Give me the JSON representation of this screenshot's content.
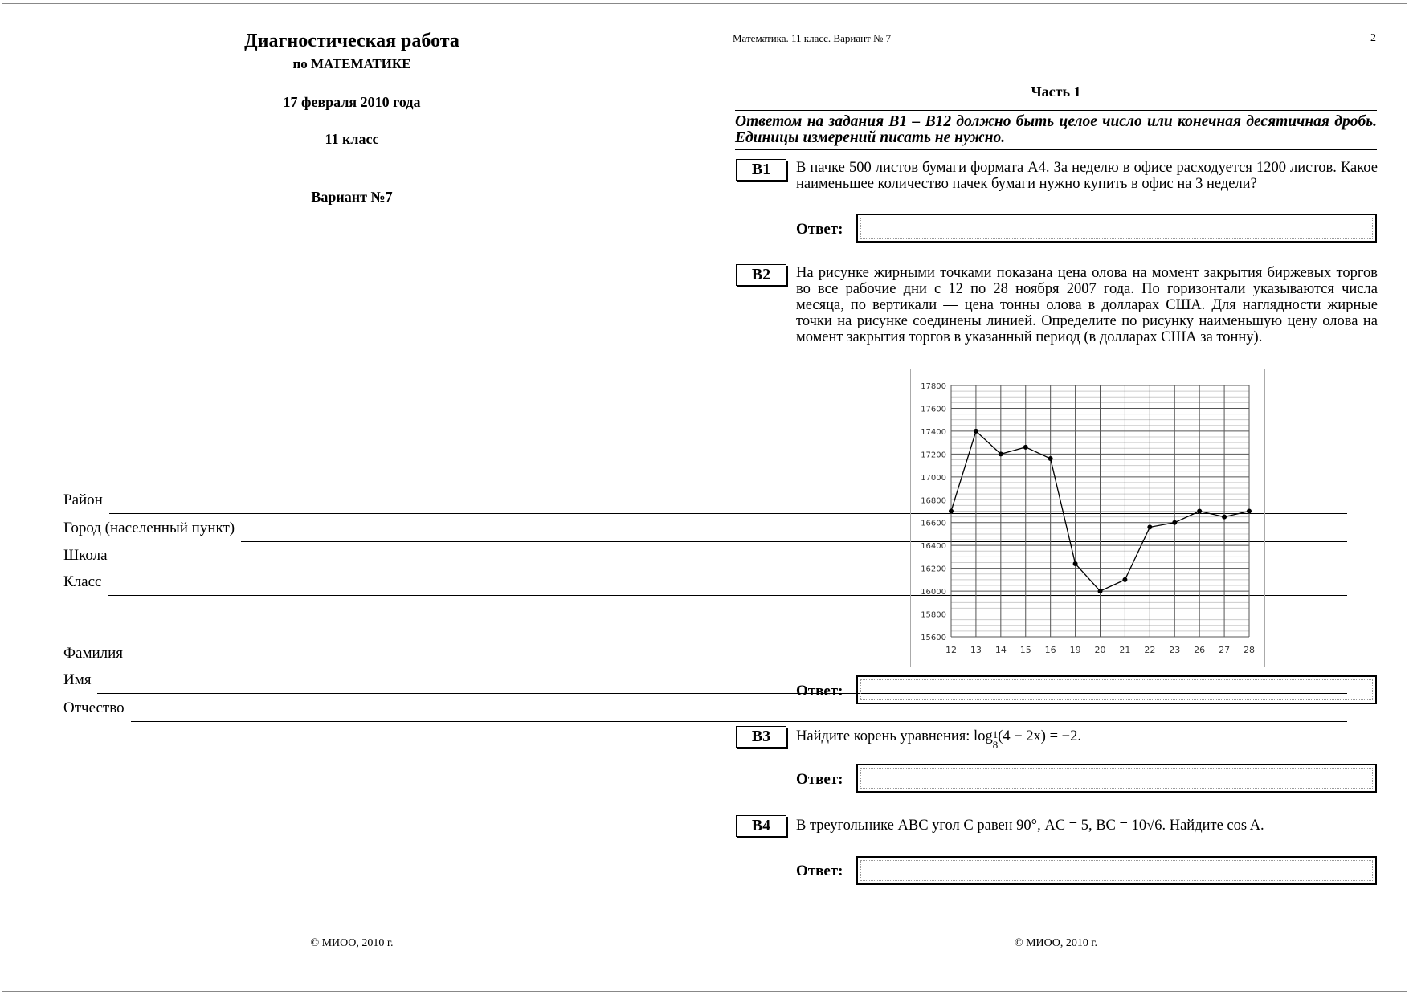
{
  "left_page": {
    "title": "Диагностическая работа",
    "subtitle": "по МАТЕМАТИКЕ",
    "date": "17 февраля 2010 года",
    "grade": "11 класс",
    "variant": "Вариант №7",
    "fields": [
      "Район",
      "Город (населенный пункт)",
      "Школа",
      "Класс",
      "Фамилия",
      "Имя",
      "Отчество"
    ],
    "footer": "© МИОО, 2010 г."
  },
  "right_page": {
    "header": "Математика. 11 класс. Вариант № 7",
    "page_number": "2",
    "part": "Часть 1",
    "instruction": "Ответом на задания В1 – В12 должно быть целое число или конечная десятичная дробь. Единицы измерений писать не нужно.",
    "answer_label": "Ответ:",
    "questions": [
      {
        "id": "B1",
        "text": "В пачке 500 листов бумаги формата А4. За неделю в офисе расходуется 1200 листов. Какое наименьшее количество пачек бумаги нужно купить в офис на 3 недели?"
      },
      {
        "id": "B2",
        "text": "На рисунке жирными точками показана цена олова на момент закрытия биржевых торгов во все рабочие дни с 12 по 28 ноября 2007 года. По горизонтали указываются числа месяца, по вертикали — цена тонны олова в долларах США. Для наглядности жирные точки на рисунке соединены линией. Определите по рисунку наименьшую цену олова на момент закрытия торгов в указанный период (в долларах США за тонну)."
      },
      {
        "id": "B3",
        "text_before": "Найдите корень уравнения: log",
        "frac_num": "1",
        "frac_den": "8",
        "text_after": "(4 − 2x) = −2."
      },
      {
        "id": "B4",
        "text": "В треугольнике ABC угол C равен 90°, AC = 5, BC = 10√6. Найдите cos A."
      }
    ],
    "footer": "© МИОО, 2010 г."
  },
  "chart_data": {
    "type": "line",
    "categories": [
      "12",
      "13",
      "14",
      "15",
      "16",
      "19",
      "20",
      "21",
      "22",
      "23",
      "26",
      "27",
      "28"
    ],
    "values": [
      16700,
      17400,
      17200,
      17260,
      17160,
      16240,
      16000,
      16100,
      16560,
      16600,
      16700,
      16650,
      16700
    ],
    "ylim": [
      15600,
      17800
    ],
    "yticks": [
      15600,
      15800,
      16000,
      16200,
      16400,
      16600,
      16800,
      17000,
      17200,
      17400,
      17600,
      17800
    ],
    "grid": true,
    "xlabel": "",
    "ylabel": ""
  }
}
